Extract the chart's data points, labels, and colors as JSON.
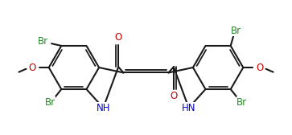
{
  "bg_color": "#ffffff",
  "bond_color": "#1a1a1a",
  "bw": 1.5,
  "dbo": 0.06,
  "r": 0.55,
  "colors": {
    "Br": "#228B22",
    "O": "#CC0000",
    "N": "#0000CD",
    "C": "#1a1a1a"
  },
  "fs": 8.5,
  "figsize": [
    3.63,
    1.68
  ],
  "dpi": 100,
  "xlim": [
    -3.2,
    3.2
  ],
  "ylim": [
    -1.25,
    1.25
  ]
}
